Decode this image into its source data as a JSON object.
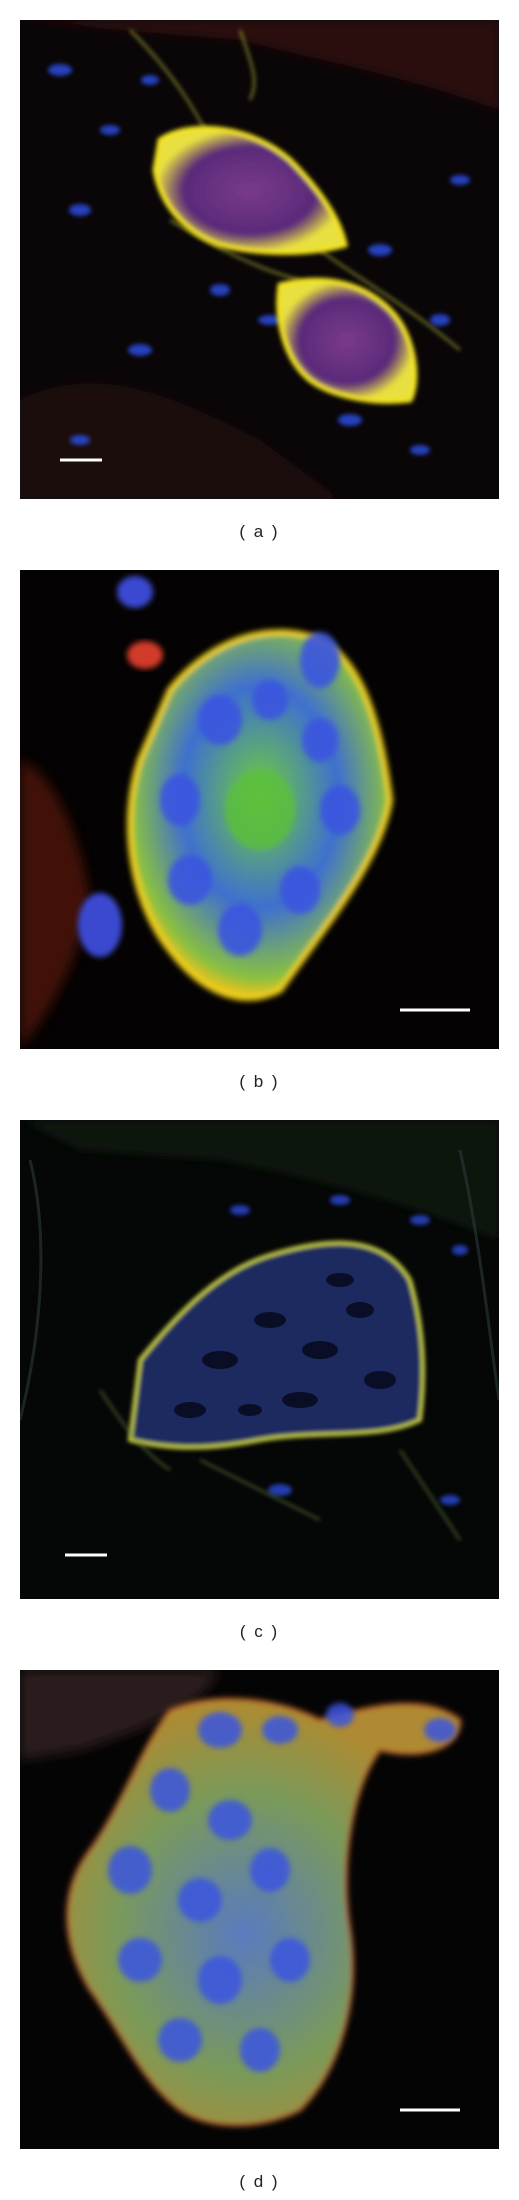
{
  "figure": {
    "panels": [
      {
        "id": "a",
        "caption": "( a )"
      },
      {
        "id": "b",
        "caption": "( b )"
      },
      {
        "id": "c",
        "caption": "( c )"
      },
      {
        "id": "d",
        "caption": "( d )"
      }
    ]
  },
  "colors": {
    "background": "#000000",
    "nuclei": "#2a4bdc",
    "membrane": "#f2e21a",
    "cytoplasm_green": "#4fc23a",
    "stroma_red": "#b0281c",
    "scale_bar": "#ffffff"
  }
}
